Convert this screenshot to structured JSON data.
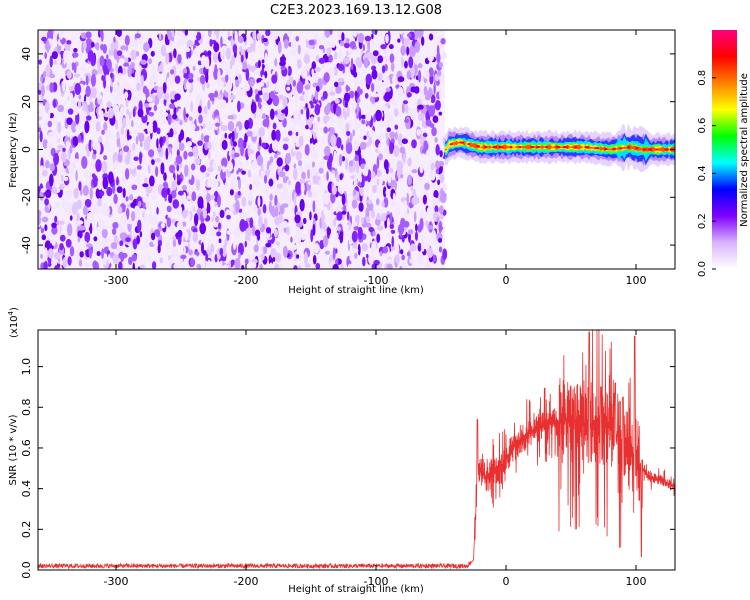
{
  "title": "C2E3.2023.169.13.12.G08",
  "chart_data": [
    {
      "type": "heatmap",
      "xlabel": "Height of straight line (km)",
      "ylabel": "Frequency (Hz)",
      "xlim": [
        -360,
        130
      ],
      "ylim": [
        -50,
        50
      ],
      "xticks": [
        -300,
        -200,
        -100,
        0,
        100
      ],
      "yticks": [
        -40,
        -20,
        0,
        20,
        40
      ],
      "colorbar": {
        "label": "Normalized spectral amplitude",
        "range": [
          0.0,
          1.0
        ],
        "ticks": [
          0.0,
          0.2,
          0.4,
          0.6,
          0.8
        ],
        "tick_labels": [
          "0.0",
          "0.2",
          "0.4",
          "0.6",
          "0.8"
        ],
        "colors": [
          "#ffffff",
          "#d9b3ff",
          "#7f00ff",
          "#0000ff",
          "#00ffff",
          "#00ff00",
          "#ffff00",
          "#ff8000",
          "#ff0000",
          "#ff0080"
        ]
      },
      "noise_region_x": [
        -360,
        -47
      ],
      "signal_region_x": [
        -47,
        130
      ],
      "signal_freq_track": [
        {
          "x": -45,
          "f": 2
        },
        {
          "x": -35,
          "f": 3
        },
        {
          "x": -20,
          "f": 1
        },
        {
          "x": 0,
          "f": 1
        },
        {
          "x": 20,
          "f": 1
        },
        {
          "x": 40,
          "f": 1
        },
        {
          "x": 60,
          "f": 1
        },
        {
          "x": 80,
          "f": 0
        },
        {
          "x": 95,
          "f": 1
        },
        {
          "x": 105,
          "f": 0
        },
        {
          "x": 130,
          "f": 0
        }
      ]
    },
    {
      "type": "line",
      "xlabel": "Height of straight line (km)",
      "ylabel": "SNR (10 * v/v)",
      "yscale_label": "(x10",
      "yscale_exp": "4",
      "yscale_close": ")",
      "xlim": [
        -360,
        130
      ],
      "ylim": [
        0,
        1.18
      ],
      "xticks": [
        -300,
        -200,
        -100,
        0,
        100
      ],
      "yticks": [
        0.0,
        0.2,
        0.4,
        0.6,
        0.8,
        1.0
      ],
      "ytick_labels": [
        "0.0",
        "0.2",
        "0.4",
        "0.6",
        "0.8",
        "1.0"
      ],
      "series": [
        {
          "color": "#e83030",
          "envelope": [
            {
              "x": -360,
              "y": 0.02
            },
            {
              "x": -200,
              "y": 0.02
            },
            {
              "x": -100,
              "y": 0.02
            },
            {
              "x": -30,
              "y": 0.02
            },
            {
              "x": -25,
              "y": 0.05
            },
            {
              "x": -22,
              "y": 0.5
            },
            {
              "x": -15,
              "y": 0.45
            },
            {
              "x": -5,
              "y": 0.5
            },
            {
              "x": 5,
              "y": 0.6
            },
            {
              "x": 20,
              "y": 0.68
            },
            {
              "x": 35,
              "y": 0.72
            },
            {
              "x": 50,
              "y": 0.74
            },
            {
              "x": 65,
              "y": 0.7
            },
            {
              "x": 80,
              "y": 0.7
            },
            {
              "x": 95,
              "y": 0.6
            },
            {
              "x": 105,
              "y": 0.5
            },
            {
              "x": 110,
              "y": 0.46
            },
            {
              "x": 120,
              "y": 0.44
            },
            {
              "x": 130,
              "y": 0.41
            }
          ],
          "peaks": [
            {
              "x": -22,
              "y": 0.74
            },
            {
              "x": 64,
              "y": 1.17
            },
            {
              "x": 73,
              "y": 0.9
            },
            {
              "x": 84,
              "y": 0.92
            },
            {
              "x": 99,
              "y": 1.15
            },
            {
              "x": 90,
              "y": 0.85
            }
          ]
        }
      ]
    }
  ]
}
